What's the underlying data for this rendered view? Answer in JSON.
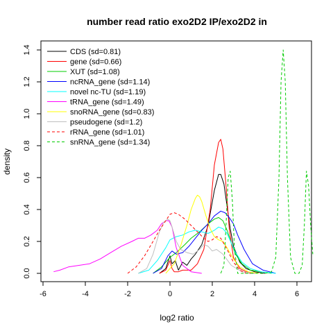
{
  "chart_data": {
    "type": "line",
    "title": "number read ratio exo2D2 IP/exo2D2 in",
    "xlabel": "log2 ratio",
    "ylabel": "density",
    "xlim": [
      -6,
      7
    ],
    "ylim": [
      0,
      1.45
    ],
    "xticks": [
      -6,
      -4,
      -2,
      0,
      2,
      4,
      6
    ],
    "yticks": [
      0.0,
      0.2,
      0.4,
      0.6,
      0.8,
      1.0,
      1.2,
      1.4
    ],
    "legend_position": "top-left",
    "grid": false,
    "series": [
      {
        "name": "CDS (sd=0.81)",
        "color": "#000000",
        "dash": "",
        "x": [
          -0.5,
          -0.2,
          0.0,
          0.1,
          0.25,
          0.4,
          0.6,
          0.8,
          1.0,
          1.2,
          1.5,
          1.8,
          2.1,
          2.3,
          2.4,
          2.55,
          2.7,
          2.85,
          3.0,
          3.3,
          3.6,
          4.0,
          4.5
        ],
        "y": [
          0.0,
          0.03,
          0.11,
          0.06,
          0.08,
          0.02,
          0.07,
          0.05,
          0.09,
          0.12,
          0.18,
          0.3,
          0.52,
          0.62,
          0.62,
          0.56,
          0.42,
          0.28,
          0.17,
          0.07,
          0.03,
          0.01,
          0.0
        ]
      },
      {
        "name": "gene (sd=0.66)",
        "color": "#ff0000",
        "dash": "",
        "x": [
          -0.5,
          -0.2,
          0.0,
          0.1,
          0.2,
          0.4,
          0.6,
          0.8,
          1.0,
          1.3,
          1.6,
          1.9,
          2.1,
          2.3,
          2.4,
          2.5,
          2.65,
          2.8,
          3.0,
          3.3,
          3.6,
          4.0
        ],
        "y": [
          0.0,
          0.02,
          0.08,
          0.03,
          0.01,
          0.01,
          0.02,
          0.02,
          0.02,
          0.06,
          0.15,
          0.4,
          0.68,
          0.82,
          0.84,
          0.78,
          0.55,
          0.28,
          0.1,
          0.03,
          0.01,
          0.0
        ]
      },
      {
        "name": "XUT (sd=1.08)",
        "color": "#00cc00",
        "dash": "",
        "x": [
          -0.8,
          -0.4,
          0.0,
          0.3,
          0.7,
          1.0,
          1.4,
          1.8,
          2.1,
          2.3,
          2.5,
          2.7,
          2.9,
          3.1,
          3.4,
          3.8,
          4.3,
          4.8
        ],
        "y": [
          0.0,
          0.04,
          0.1,
          0.13,
          0.18,
          0.22,
          0.26,
          0.31,
          0.34,
          0.35,
          0.33,
          0.27,
          0.19,
          0.12,
          0.06,
          0.02,
          0.01,
          0.0
        ]
      },
      {
        "name": "ncRNA_gene (sd=1.14)",
        "color": "#0000ff",
        "dash": "",
        "x": [
          -0.8,
          -0.4,
          -0.1,
          0.1,
          0.3,
          0.6,
          0.9,
          1.2,
          1.5,
          1.8,
          2.1,
          2.4,
          2.6,
          2.8,
          3.0,
          3.2,
          3.5,
          3.9,
          4.4,
          5.0
        ],
        "y": [
          0.0,
          0.03,
          0.11,
          0.14,
          0.12,
          0.13,
          0.17,
          0.22,
          0.27,
          0.31,
          0.36,
          0.39,
          0.38,
          0.35,
          0.31,
          0.24,
          0.15,
          0.06,
          0.02,
          0.0
        ]
      },
      {
        "name": "novel nc-TU (sd=1.19)",
        "color": "#00ffff",
        "dash": "",
        "x": [
          -1.5,
          -1.0,
          -0.6,
          -0.2,
          0.0,
          0.3,
          0.6,
          0.9,
          1.2,
          1.5,
          1.8,
          2.1,
          2.3,
          2.5,
          2.7,
          2.9,
          3.1,
          3.4,
          3.8,
          4.3,
          5.0
        ],
        "y": [
          0.0,
          0.02,
          0.08,
          0.16,
          0.21,
          0.23,
          0.24,
          0.26,
          0.27,
          0.26,
          0.25,
          0.27,
          0.29,
          0.28,
          0.25,
          0.19,
          0.13,
          0.07,
          0.03,
          0.01,
          0.0
        ]
      },
      {
        "name": "tRNA_gene (sd=1.49)",
        "color": "#ff00ff",
        "dash": "",
        "x": [
          -5.5,
          -5.2,
          -4.8,
          -4.3,
          -3.8,
          -3.3,
          -2.8,
          -2.3,
          -1.8,
          -1.5,
          -1.2,
          -0.9,
          -0.6,
          -0.4,
          -0.2,
          -0.05,
          0.1,
          0.3,
          0.6,
          1.0,
          1.5
        ],
        "y": [
          0.01,
          0.02,
          0.04,
          0.05,
          0.06,
          0.09,
          0.13,
          0.17,
          0.2,
          0.22,
          0.22,
          0.24,
          0.27,
          0.31,
          0.33,
          0.33,
          0.29,
          0.16,
          0.05,
          0.01,
          0.0
        ]
      },
      {
        "name": "snoRNA_gene (sd=0.83)",
        "color": "#ffff00",
        "dash": "",
        "x": [
          -0.2,
          0.2,
          0.5,
          0.8,
          1.0,
          1.2,
          1.3,
          1.4,
          1.5,
          1.7,
          1.9,
          2.1,
          2.3,
          2.5,
          2.7,
          3.0,
          3.3,
          3.7,
          4.2
        ],
        "y": [
          0.0,
          0.06,
          0.17,
          0.3,
          0.4,
          0.47,
          0.49,
          0.48,
          0.45,
          0.36,
          0.28,
          0.23,
          0.21,
          0.2,
          0.16,
          0.09,
          0.04,
          0.01,
          0.0
        ]
      },
      {
        "name": "pseudogene (sd=1.2)",
        "color": "#bebebe",
        "dash": "",
        "x": [
          -1.5,
          -1.1,
          -0.8,
          -0.5,
          -0.3,
          -0.1,
          0.0,
          0.1,
          0.3,
          0.5,
          0.8,
          1.1,
          1.4,
          1.6,
          1.8,
          2.0,
          2.2,
          2.5,
          2.9,
          3.4,
          4.0
        ],
        "y": [
          0.0,
          0.03,
          0.12,
          0.26,
          0.32,
          0.34,
          0.33,
          0.29,
          0.2,
          0.15,
          0.13,
          0.12,
          0.15,
          0.18,
          0.17,
          0.14,
          0.15,
          0.12,
          0.05,
          0.01,
          0.0
        ]
      },
      {
        "name": "rRNA_gene (sd=1.01)",
        "color": "#ff0000",
        "dash": "4,3",
        "x": [
          -2.0,
          -1.6,
          -1.2,
          -0.8,
          -0.5,
          -0.2,
          0.0,
          0.2,
          0.4,
          0.7,
          1.0,
          1.3,
          1.6,
          1.8,
          2.0,
          2.2,
          2.4,
          2.7,
          3.0,
          3.3,
          3.6,
          4.0
        ],
        "y": [
          0.0,
          0.04,
          0.11,
          0.2,
          0.27,
          0.33,
          0.37,
          0.38,
          0.37,
          0.34,
          0.3,
          0.26,
          0.22,
          0.2,
          0.21,
          0.23,
          0.22,
          0.15,
          0.07,
          0.02,
          0.0,
          0.0
        ]
      },
      {
        "name": "snRNA_gene (sd=1.34)",
        "color": "#00cc00",
        "dash": "4,3",
        "x": [
          2.4,
          2.55,
          2.65,
          2.75,
          2.85,
          2.95,
          3.05,
          3.2,
          3.5,
          4.0,
          4.5,
          4.8,
          5.0,
          5.15,
          5.25,
          5.35,
          5.45,
          5.55,
          5.7,
          5.9,
          6.1,
          6.25,
          6.35,
          6.45,
          6.55,
          6.65,
          6.75
        ],
        "y": [
          0.0,
          0.05,
          0.3,
          0.6,
          0.64,
          0.45,
          0.15,
          0.0,
          0.0,
          0.0,
          0.0,
          0.01,
          0.1,
          0.6,
          1.2,
          1.4,
          1.2,
          0.6,
          0.1,
          0.0,
          0.0,
          0.05,
          0.3,
          0.64,
          0.55,
          0.3,
          0.12
        ]
      }
    ]
  }
}
